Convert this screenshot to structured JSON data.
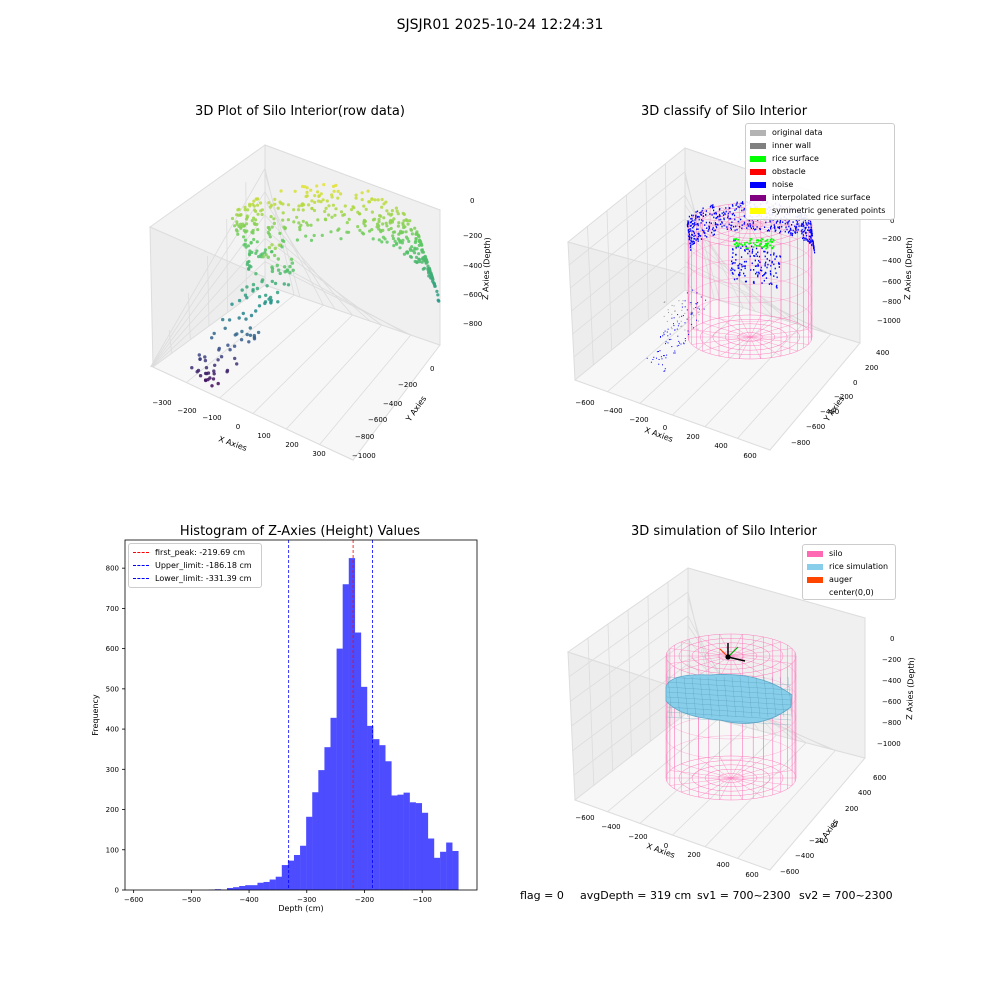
{
  "figure": {
    "suptitle": "SJSJR01 2025-10-24 12:24:31"
  },
  "status": {
    "flag": "flag = 0",
    "avg_depth": "avgDepth = 319 cm",
    "sv1": "sv1 = 700~2300",
    "sv2": "sv2 = 700~2300"
  },
  "colors": {
    "hist_bar": "#4d4dff",
    "first_peak": "#ff0000",
    "limits": "#0000ff",
    "silo": "#ff69b4",
    "rice_simulation": "#87ceeb",
    "auger": "#ff4500"
  },
  "chart_data": [
    {
      "type": "scatter",
      "subtype": "3d",
      "title": "3D Plot of Silo Interior(row data)",
      "xlabel": "X Axies",
      "ylabel": "Y Axies",
      "zlabel": "Z Axies (Depth)",
      "x_ticks": [
        "−300",
        "−200",
        "−100",
        "0",
        "100",
        "200",
        "300"
      ],
      "y_ticks": [
        "0",
        "−200",
        "−400",
        "−600",
        "−800",
        "−1000"
      ],
      "z_ticks": [
        "0",
        "−200",
        "−400",
        "−600",
        "−800"
      ],
      "colormap": "viridis"
    },
    {
      "type": "scatter",
      "subtype": "3d",
      "title": "3D classify of Silo Interior",
      "xlabel": "X Axies",
      "ylabel": "Y Axies",
      "zlabel": "Z Axies (Depth)",
      "x_ticks": [
        "−600",
        "−400",
        "−200",
        "0",
        "200",
        "400",
        "600"
      ],
      "y_ticks": [
        "400",
        "200",
        "0",
        "−200",
        "−400",
        "−600",
        "−800"
      ],
      "z_ticks": [
        "0",
        "−200",
        "−400",
        "−600",
        "−800",
        "−1000"
      ],
      "legend_position": "top-right",
      "legend": [
        {
          "label": "original data",
          "color": "#b3b3b3"
        },
        {
          "label": "inner wall",
          "color": "#808080"
        },
        {
          "label": "rice surface",
          "color": "#00ff00"
        },
        {
          "label": "obstacle",
          "color": "#ff0000"
        },
        {
          "label": "noise",
          "color": "#0000ff"
        },
        {
          "label": "interpolated rice surface",
          "color": "#800080"
        },
        {
          "label": "symmetric generated points",
          "color": "#ffff00"
        }
      ]
    },
    {
      "type": "bar",
      "subtype": "histogram",
      "title": "Histogram of Z-Axies (Height) Values",
      "xlabel": "Depth (cm)",
      "ylabel": "Frequency",
      "xlim": [
        -615,
        -5
      ],
      "ylim": [
        0,
        870
      ],
      "x_ticks": [
        -600,
        -500,
        -400,
        -300,
        -200,
        -100
      ],
      "x_tick_labels": [
        "−600",
        "−500",
        "−400",
        "−300",
        "−200",
        "−100"
      ],
      "y_ticks": [
        0,
        100,
        200,
        300,
        400,
        500,
        600,
        700,
        800
      ],
      "bin_edges": [
        -575.37,
        -564.82,
        -554.27,
        -543.72,
        -533.17,
        -522.62,
        -512.07,
        -501.52,
        -490.97,
        -480.42,
        -469.87,
        -459.32,
        -448.77,
        -438.22,
        -427.67,
        -417.12,
        -406.57,
        -396.02,
        -385.47,
        -374.92,
        -364.37,
        -353.82,
        -343.27,
        -332.72,
        -322.17,
        -311.62,
        -301.07,
        -290.52,
        -279.97,
        -269.42,
        -258.87,
        -248.32,
        -237.77,
        -227.22,
        -216.67,
        -206.12,
        -195.57,
        -185.02,
        -174.47,
        -163.92,
        -153.37,
        -142.82,
        -132.27,
        -121.72,
        -111.17,
        -100.62,
        -90.07,
        -79.52,
        -68.97,
        -58.42,
        -47.87,
        -37.32
      ],
      "values": [
        0,
        0,
        0,
        0,
        0,
        0,
        0,
        0,
        0,
        0,
        1,
        2,
        1,
        5,
        7,
        10,
        12,
        12,
        18,
        20,
        26,
        33,
        62,
        73,
        87,
        110,
        182,
        243,
        298,
        355,
        428,
        600,
        760,
        825,
        640,
        505,
        408,
        375,
        360,
        320,
        235,
        237,
        242,
        218,
        216,
        192,
        128,
        80,
        95,
        118,
        97
      ],
      "lines": [
        {
          "label": "first_peak: -219.69 cm",
          "x": -219.69,
          "color": "#ff0000"
        },
        {
          "label": "Upper_limit: -186.18 cm",
          "x": -186.18,
          "color": "#0000ff"
        },
        {
          "label": "Lower_limit: -331.39 cm",
          "x": -331.39,
          "color": "#0000ff"
        }
      ],
      "legend_position": "top-left"
    },
    {
      "type": "surface",
      "subtype": "3d",
      "title": "3D simulation of Silo Interior",
      "xlabel": "X Axies",
      "ylabel": "Y Axies",
      "zlabel": "Z Axies (Depth)",
      "x_ticks": [
        "−600",
        "−400",
        "−200",
        "0",
        "200",
        "400",
        "600"
      ],
      "y_ticks": [
        "600",
        "400",
        "200",
        "0",
        "−200",
        "−400",
        "−600"
      ],
      "z_ticks": [
        "0",
        "−200",
        "−400",
        "−600",
        "−800",
        "−1000"
      ],
      "legend_position": "top-right",
      "legend": [
        {
          "label": "silo",
          "color": "#ff69b4"
        },
        {
          "label": "rice simulation",
          "color": "#87ceeb"
        },
        {
          "label": "auger",
          "color": "#ff4500"
        },
        {
          "label": "center(0,0)",
          "color": ""
        }
      ]
    }
  ]
}
